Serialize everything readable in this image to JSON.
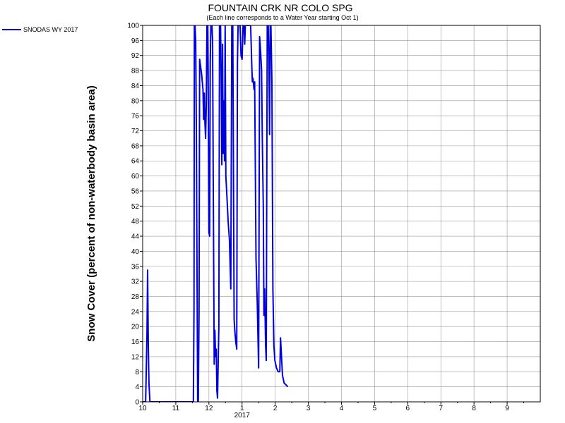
{
  "chart_data": {
    "type": "line",
    "title": "FOUNTAIN CRK NR COLO SPG",
    "subtitle": "(Each line corresponds to a Water Year starting Oct 1)",
    "ylabel": "Snow Cover (percent of non-waterbody basin area)",
    "xlabel": "",
    "ylim": [
      0,
      100
    ],
    "y_ticks": [
      "0",
      "4",
      "8",
      "12",
      "16",
      "20",
      "24",
      "28",
      "32",
      "36",
      "40",
      "44",
      "48",
      "52",
      "56",
      "60",
      "64",
      "68",
      "72",
      "76",
      "80",
      "84",
      "88",
      "92",
      "96",
      "100"
    ],
    "xlim": [
      0,
      12
    ],
    "x_ticks": [
      {
        "label": "10",
        "pos": 0
      },
      {
        "label": "11",
        "pos": 1
      },
      {
        "label": "12",
        "pos": 2
      },
      {
        "label": "1",
        "pos": 3
      },
      {
        "label": "2",
        "pos": 4
      },
      {
        "label": "3",
        "pos": 5
      },
      {
        "label": "4",
        "pos": 6
      },
      {
        "label": "5",
        "pos": 7
      },
      {
        "label": "6",
        "pos": 8
      },
      {
        "label": "7",
        "pos": 9
      },
      {
        "label": "8",
        "pos": 10
      },
      {
        "label": "9",
        "pos": 11
      }
    ],
    "year_label": {
      "text": "2017",
      "pos": 3
    },
    "grid": true,
    "legend_position": "top-left",
    "series": [
      {
        "name": "SNODAS WY 2017",
        "color": "#0000dd",
        "points": [
          [
            0.0,
            0
          ],
          [
            0.09,
            0
          ],
          [
            0.13,
            18
          ],
          [
            0.15,
            35
          ],
          [
            0.17,
            15
          ],
          [
            0.19,
            5
          ],
          [
            0.22,
            0
          ],
          [
            1.5,
            0
          ],
          [
            1.53,
            0
          ],
          [
            1.55,
            25
          ],
          [
            1.56,
            100
          ],
          [
            1.58,
            100
          ],
          [
            1.6,
            96
          ],
          [
            1.62,
            73
          ],
          [
            1.65,
            18
          ],
          [
            1.66,
            0
          ],
          [
            1.68,
            0
          ],
          [
            1.7,
            23
          ],
          [
            1.72,
            91
          ],
          [
            1.75,
            89
          ],
          [
            1.78,
            87
          ],
          [
            1.82,
            83
          ],
          [
            1.84,
            75
          ],
          [
            1.86,
            82
          ],
          [
            1.88,
            74
          ],
          [
            1.9,
            70
          ],
          [
            1.92,
            79
          ],
          [
            1.94,
            100
          ],
          [
            1.96,
            100
          ],
          [
            1.98,
            80
          ],
          [
            2.0,
            45
          ],
          [
            2.02,
            44
          ],
          [
            2.04,
            90
          ],
          [
            2.06,
            100
          ],
          [
            2.09,
            100
          ],
          [
            2.11,
            96
          ],
          [
            2.13,
            60
          ],
          [
            2.16,
            10
          ],
          [
            2.18,
            19
          ],
          [
            2.2,
            12
          ],
          [
            2.22,
            14
          ],
          [
            2.24,
            3
          ],
          [
            2.26,
            1
          ],
          [
            2.3,
            20
          ],
          [
            2.32,
            100
          ],
          [
            2.35,
            100
          ],
          [
            2.37,
            85
          ],
          [
            2.39,
            63
          ],
          [
            2.41,
            95
          ],
          [
            2.43,
            66
          ],
          [
            2.45,
            80
          ],
          [
            2.47,
            64
          ],
          [
            2.49,
            100
          ],
          [
            2.51,
            60
          ],
          [
            2.54,
            55
          ],
          [
            2.58,
            48
          ],
          [
            2.62,
            43
          ],
          [
            2.64,
            36
          ],
          [
            2.66,
            30
          ],
          [
            2.69,
            100
          ],
          [
            2.72,
            100
          ],
          [
            2.74,
            60
          ],
          [
            2.76,
            22
          ],
          [
            2.78,
            19
          ],
          [
            2.81,
            16
          ],
          [
            2.84,
            14
          ],
          [
            2.86,
            90
          ],
          [
            2.88,
            100
          ],
          [
            2.91,
            100
          ],
          [
            2.94,
            100
          ],
          [
            2.97,
            92
          ],
          [
            3.0,
            91
          ],
          [
            3.03,
            100
          ],
          [
            3.06,
            100
          ],
          [
            3.08,
            95
          ],
          [
            3.1,
            100
          ],
          [
            3.12,
            100
          ],
          [
            3.15,
            100
          ],
          [
            3.18,
            100
          ],
          [
            3.22,
            100
          ],
          [
            3.26,
            100
          ],
          [
            3.29,
            90
          ],
          [
            3.31,
            85
          ],
          [
            3.33,
            86
          ],
          [
            3.36,
            83
          ],
          [
            3.38,
            85
          ],
          [
            3.42,
            38
          ],
          [
            3.46,
            26
          ],
          [
            3.5,
            9
          ],
          [
            3.53,
            97
          ],
          [
            3.56,
            93
          ],
          [
            3.59,
            88
          ],
          [
            3.61,
            70
          ],
          [
            3.64,
            52
          ],
          [
            3.66,
            23
          ],
          [
            3.68,
            30
          ],
          [
            3.71,
            15
          ],
          [
            3.73,
            11
          ],
          [
            3.76,
            100
          ],
          [
            3.79,
            100
          ],
          [
            3.81,
            90
          ],
          [
            3.83,
            71
          ],
          [
            3.85,
            100
          ],
          [
            3.87,
            100
          ],
          [
            3.9,
            85
          ],
          [
            3.93,
            30
          ],
          [
            3.96,
            15
          ],
          [
            3.99,
            11
          ],
          [
            4.04,
            9
          ],
          [
            4.09,
            8
          ],
          [
            4.14,
            8
          ],
          [
            4.16,
            17
          ],
          [
            4.19,
            12
          ],
          [
            4.22,
            7
          ],
          [
            4.27,
            5
          ],
          [
            4.33,
            4.5
          ],
          [
            4.38,
            4
          ]
        ]
      }
    ]
  }
}
